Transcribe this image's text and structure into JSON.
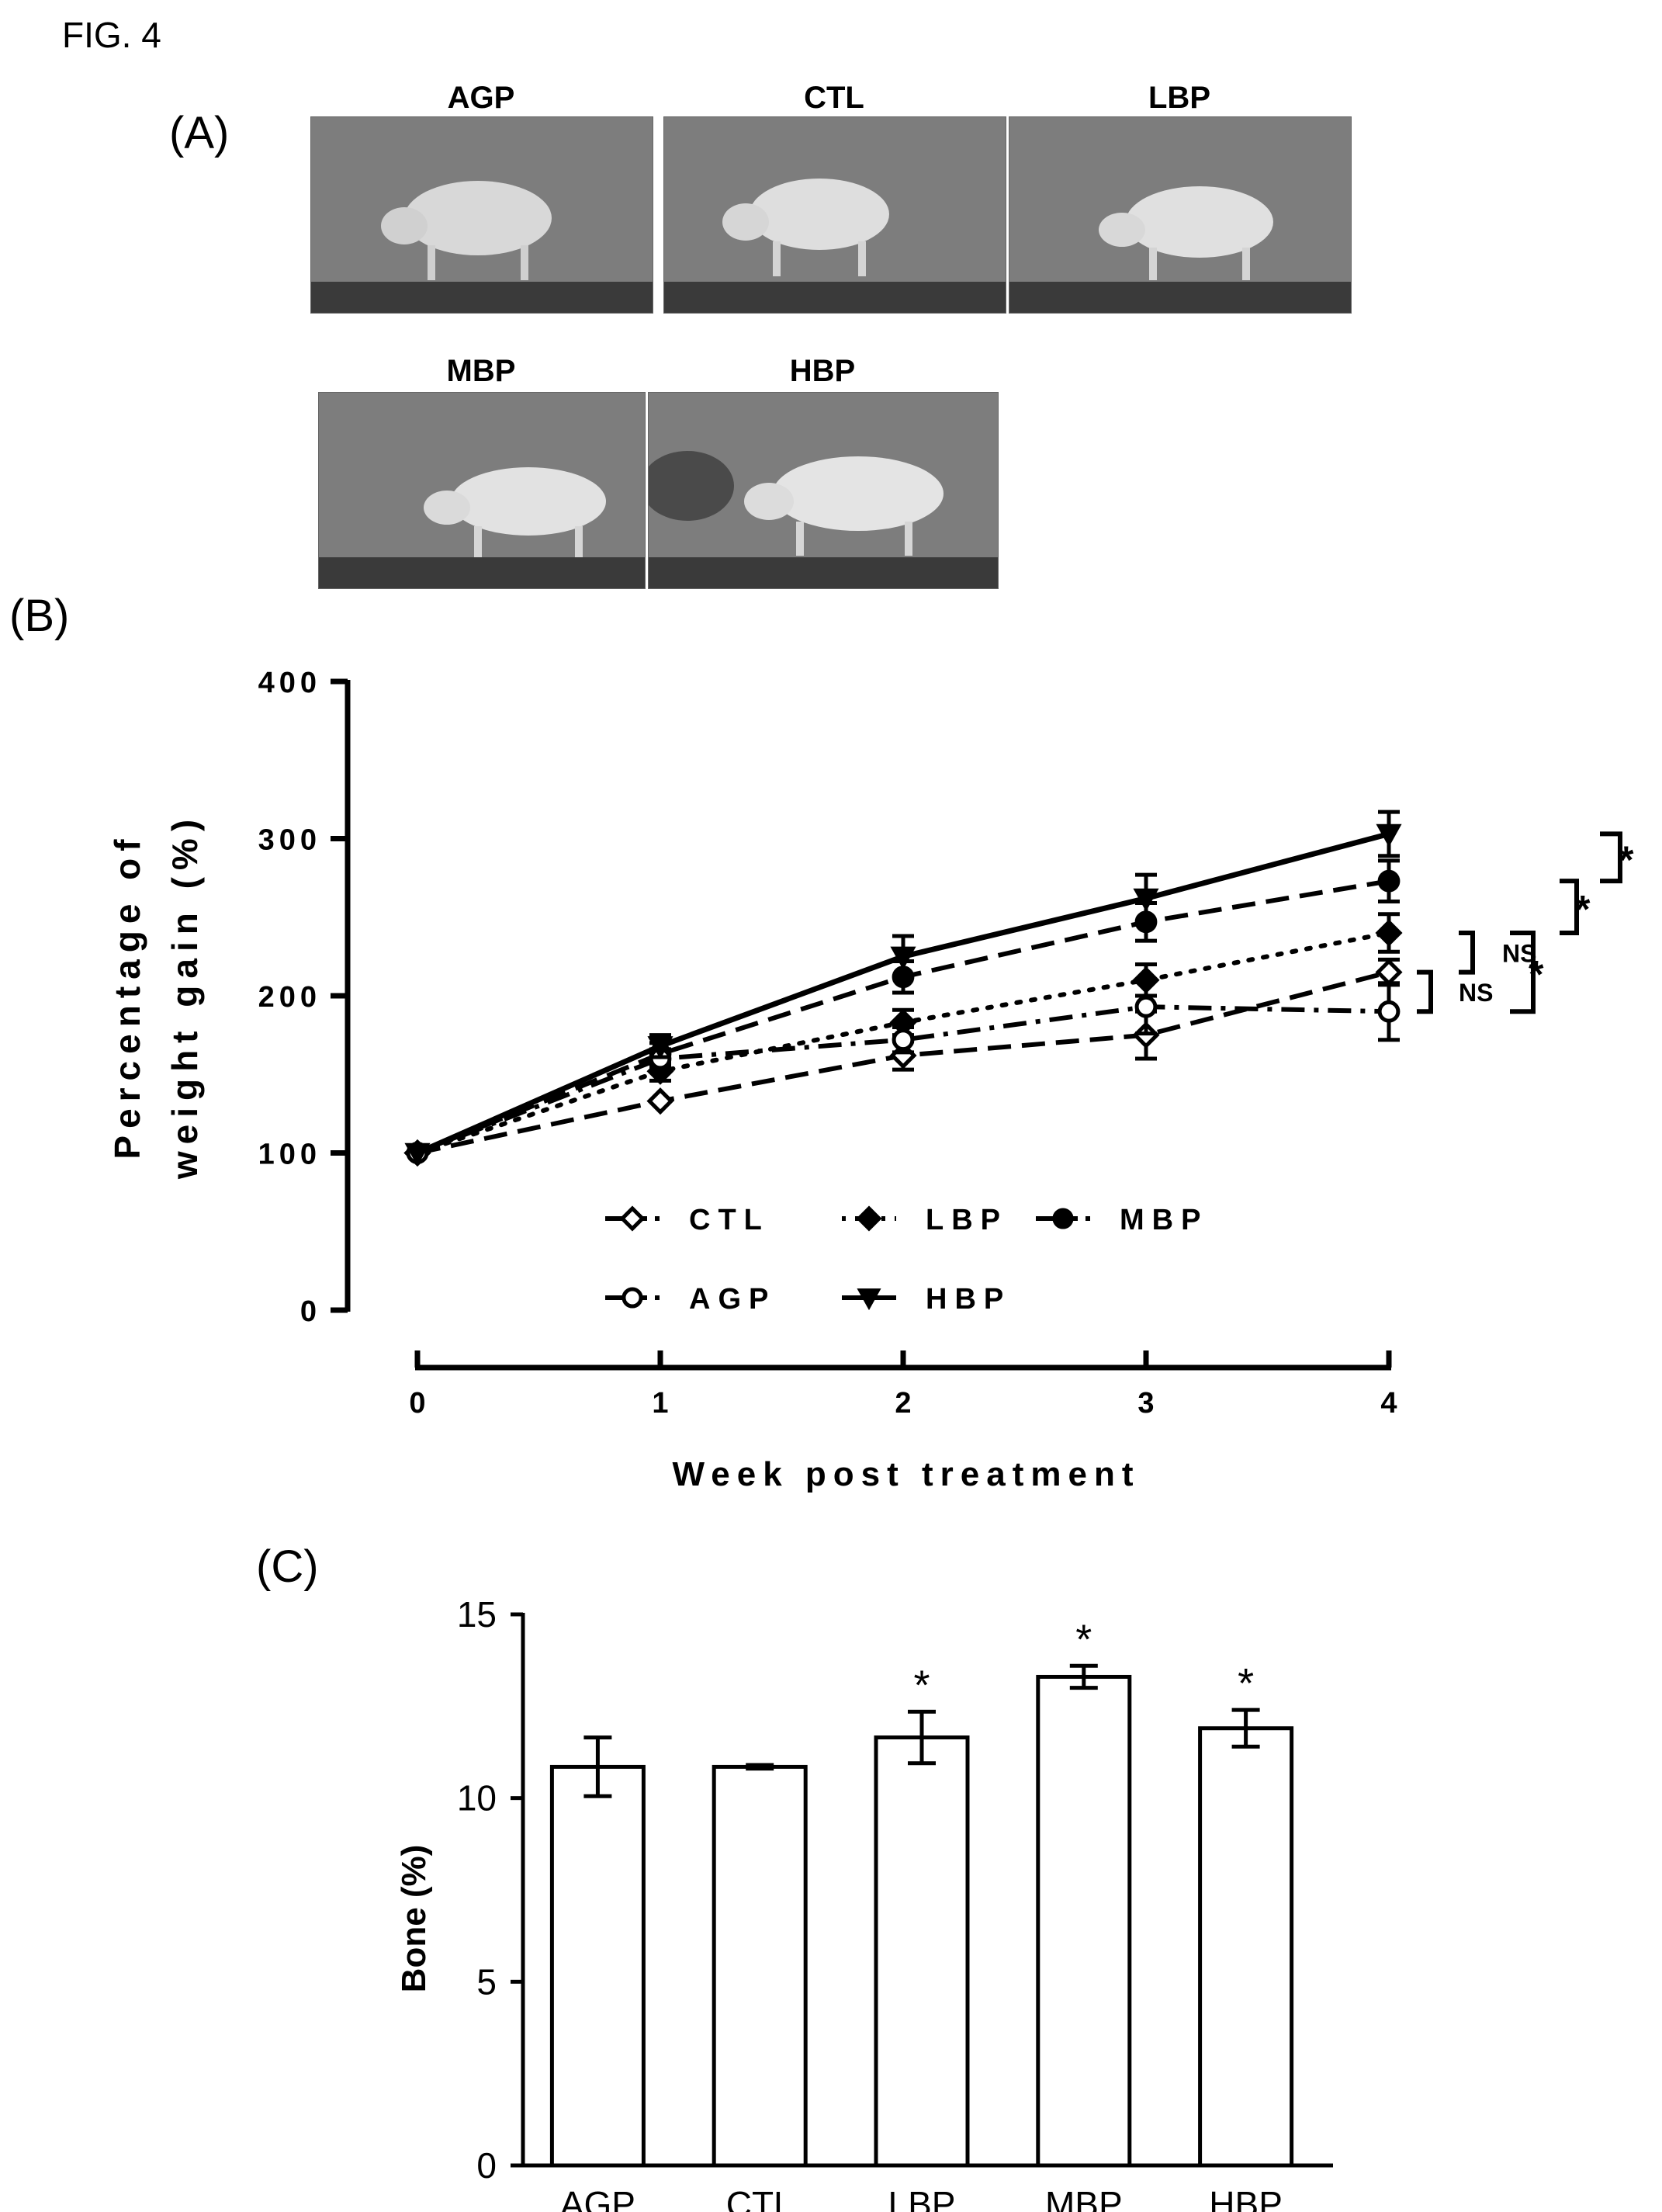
{
  "figure": {
    "label": "FIG. 4"
  },
  "panels": {
    "a": {
      "letter": "(A)"
    },
    "b": {
      "letter": "(B)"
    },
    "c": {
      "letter": "(C)"
    }
  },
  "photos": [
    {
      "title": "AGP"
    },
    {
      "title": "CTL"
    },
    {
      "title": "LBP"
    },
    {
      "title": "MBP"
    },
    {
      "title": "HBP"
    }
  ],
  "colors": {
    "ink": "#000000",
    "photo_bg": "#8a8a8a",
    "bars": "#ffffff"
  },
  "chart_data": [
    {
      "type": "line",
      "ylabel_line1": "Percentage of",
      "ylabel_line2": "weight gain (%)",
      "xlabel": "Week post treatment",
      "x": [
        0,
        1,
        2,
        3,
        4
      ],
      "xlim": [
        0,
        4
      ],
      "ylim": [
        0,
        400
      ],
      "yticks": [
        0,
        100,
        200,
        300,
        400
      ],
      "grid": false,
      "legend_placement": "inside-bottom",
      "series": [
        {
          "name": "CTL",
          "values": [
            100,
            133,
            162,
            175,
            215
          ],
          "errors": [
            3,
            4,
            9,
            15,
            8
          ],
          "marker": "diamond-open",
          "dash": "dashed"
        },
        {
          "name": "LBP",
          "values": [
            100,
            152,
            183,
            210,
            240
          ],
          "errors": [
            3,
            6,
            8,
            10,
            12
          ],
          "marker": "diamond-filled",
          "dash": "dotted"
        },
        {
          "name": "MBP",
          "values": [
            100,
            163,
            212,
            247,
            273
          ],
          "errors": [
            3,
            7,
            10,
            12,
            13
          ],
          "marker": "circle-filled",
          "dash": "dashed"
        },
        {
          "name": "AGP",
          "values": [
            100,
            160,
            172,
            193,
            190
          ],
          "errors": [
            3,
            6,
            8,
            17,
            18
          ],
          "marker": "circle-open",
          "dash": "dashdot"
        },
        {
          "name": "HBP",
          "values": [
            100,
            168,
            225,
            262,
            303
          ],
          "errors": [
            3,
            7,
            13,
            15,
            14
          ],
          "marker": "triangle-down-filled",
          "dash": "solid"
        }
      ],
      "annotations": [
        {
          "text": "NS",
          "range": [
            190,
            215
          ]
        },
        {
          "text": "NS",
          "range": [
            215,
            240
          ]
        },
        {
          "text": "*",
          "range": [
            190,
            240
          ]
        },
        {
          "text": "*",
          "range": [
            240,
            273
          ]
        },
        {
          "text": "*",
          "range": [
            273,
            303
          ]
        }
      ]
    },
    {
      "type": "bar",
      "categories": [
        "AGP",
        "CTL",
        "LBP",
        "MBP",
        "HBP"
      ],
      "values": [
        10.85,
        10.85,
        11.65,
        13.3,
        11.9
      ],
      "errors": [
        0.8,
        0.05,
        0.7,
        0.3,
        0.5
      ],
      "significance": [
        "",
        "",
        "*",
        "*",
        "*"
      ],
      "ylabel": "Bone  (%)",
      "ylim": [
        0,
        15
      ],
      "yticks": [
        0,
        5,
        10,
        15
      ],
      "grid": false
    }
  ]
}
